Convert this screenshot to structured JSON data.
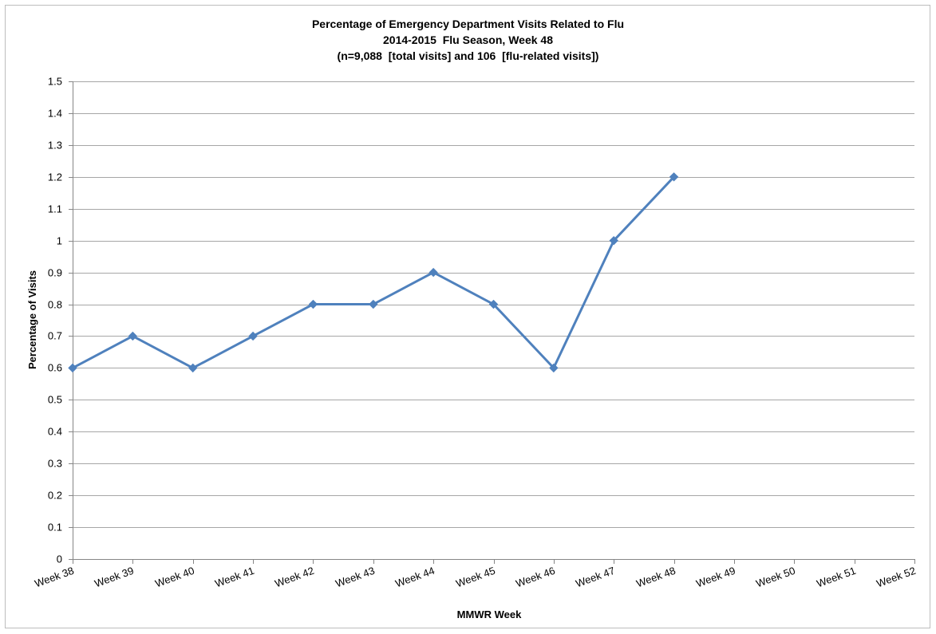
{
  "chart_data": {
    "type": "line",
    "title": "Percentage of Emergency Department Visits Related to Flu",
    "subtitle": "2014-2015  Flu Season, Week 48",
    "subtitle2": "(n=9,088  [total visits] and 106  [flu-related visits])",
    "xlabel": "MMWR  Week",
    "ylabel": "Percentage of Visits",
    "ylim": [
      0,
      1.5
    ],
    "ytick_step": 0.1,
    "yticks": [
      "0",
      "0.1",
      "0.2",
      "0.3",
      "0.4",
      "0.5",
      "0.6",
      "0.7",
      "0.8",
      "0.9",
      "1",
      "1.1",
      "1.2",
      "1.3",
      "1.4",
      "1.5"
    ],
    "grid": true,
    "legend": "none",
    "categories": [
      "Week 38",
      "Week 39",
      "Week 40",
      "Week 41",
      "Week 42",
      "Week 43",
      "Week 44",
      "Week 45",
      "Week 46",
      "Week 47",
      "Week 48",
      "Week 49",
      "Week 50",
      "Week 51",
      "Week 52"
    ],
    "series": [
      {
        "values": [
          0.6,
          0.7,
          0.6,
          0.7,
          0.8,
          0.8,
          0.9,
          0.8,
          0.6,
          1.0,
          1.2,
          null,
          null,
          null,
          null
        ],
        "color": "#4f81bd",
        "marker": "diamond"
      }
    ],
    "colors": {
      "gridline": "#a6a6a6",
      "axis": "#868686"
    }
  }
}
